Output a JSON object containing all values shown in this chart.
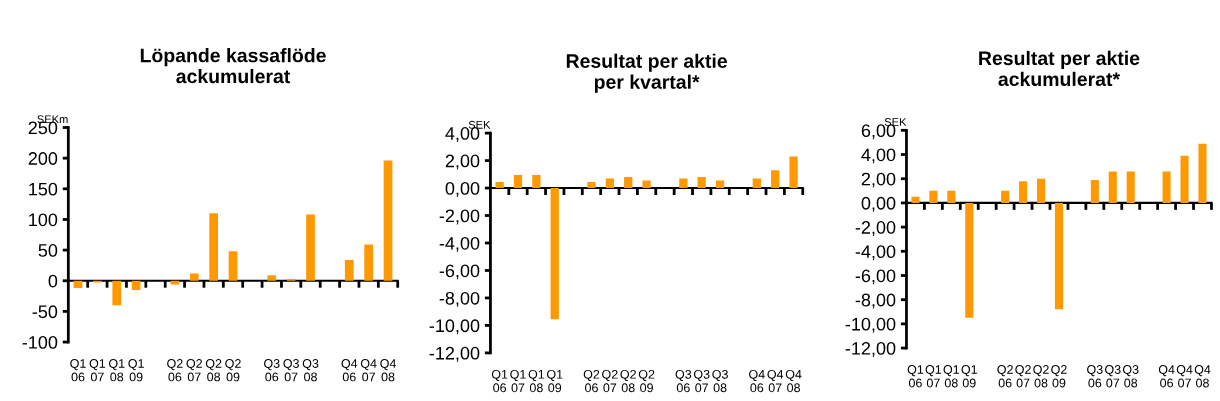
{
  "chart_data": [
    {
      "type": "bar",
      "title": "Löpande kassaflöde\nackumulerat",
      "ylabel": "SEKm",
      "categories": [
        "Q1\n06",
        "Q1\n07",
        "Q1\n08",
        "Q1\n09",
        null,
        "Q2\n06",
        "Q2\n07",
        "Q2\n08",
        "Q2\n09",
        null,
        "Q3\n06",
        "Q3\n07",
        "Q3\n08",
        null,
        "Q4\n06",
        "Q4\n07",
        "Q4\n08"
      ],
      "values": [
        -12,
        -3,
        -40,
        -15,
        null,
        -6,
        12,
        110,
        48,
        null,
        9,
        3,
        108,
        null,
        34,
        59,
        196
      ],
      "color": "#ff9900",
      "ylim": [
        -100,
        250
      ],
      "yticks": [
        -100,
        -50,
        0,
        50,
        100,
        150,
        200,
        250
      ]
    },
    {
      "type": "bar",
      "title": "Resultat per aktie\nper kvartal*",
      "ylabel": "SEK",
      "categories": [
        "Q1\n06",
        "Q1\n07",
        "Q1\n08",
        "Q1\n09",
        null,
        "Q2\n06",
        "Q2\n07",
        "Q2\n08",
        "Q2\n09",
        null,
        "Q3\n06",
        "Q3\n07",
        "Q3\n08",
        null,
        "Q4\n06",
        "Q4\n07",
        "Q4\n08"
      ],
      "values": [
        0.45,
        0.95,
        0.95,
        -9.55,
        null,
        0.45,
        0.7,
        0.8,
        0.55,
        null,
        0.7,
        0.8,
        0.55,
        null,
        0.7,
        1.3,
        2.3
      ],
      "color": "#ff9900",
      "ylim": [
        -12,
        4
      ],
      "yticks": [
        {
          "value": -12,
          "label": "-12,00"
        },
        {
          "value": -10,
          "label": "-10,00"
        },
        {
          "value": -8,
          "label": "-8,00"
        },
        {
          "value": -6,
          "label": "-6,00"
        },
        {
          "value": -4,
          "label": "-4,00"
        },
        {
          "value": -2,
          "label": "-2,00"
        },
        {
          "value": 0,
          "label": "0,00"
        },
        {
          "value": 2,
          "label": "2,00"
        },
        {
          "value": 4,
          "label": "4,00"
        }
      ]
    },
    {
      "type": "bar",
      "title": "Resultat per aktie\nackumulerat*",
      "ylabel": "SEK",
      "categories": [
        "Q1\n06",
        "Q1\n07",
        "Q1\n08",
        "Q1\n09",
        null,
        "Q2\n06",
        "Q2\n07",
        "Q2\n08",
        "Q2\n09",
        null,
        "Q3\n06",
        "Q3\n07",
        "Q3\n08",
        null,
        "Q4\n06",
        "Q4\n07",
        "Q4\n08"
      ],
      "values": [
        0.5,
        1.0,
        1.0,
        -9.5,
        null,
        1.0,
        1.8,
        2.0,
        -8.8,
        null,
        1.9,
        2.6,
        2.6,
        null,
        2.6,
        3.9,
        4.9
      ],
      "color": "#ff9900",
      "ylim": [
        -12,
        6
      ],
      "yticks": [
        {
          "value": -12,
          "label": "-12,00"
        },
        {
          "value": -10,
          "label": "-10,00"
        },
        {
          "value": -8,
          "label": "-8,00"
        },
        {
          "value": -6,
          "label": "-6,00"
        },
        {
          "value": -4,
          "label": "-4,00"
        },
        {
          "value": -2,
          "label": "-2,00"
        },
        {
          "value": 0,
          "label": "0,00"
        },
        {
          "value": 2,
          "label": "2,00"
        },
        {
          "value": 4,
          "label": "4,00"
        },
        {
          "value": 6,
          "label": "6,00"
        }
      ]
    }
  ]
}
